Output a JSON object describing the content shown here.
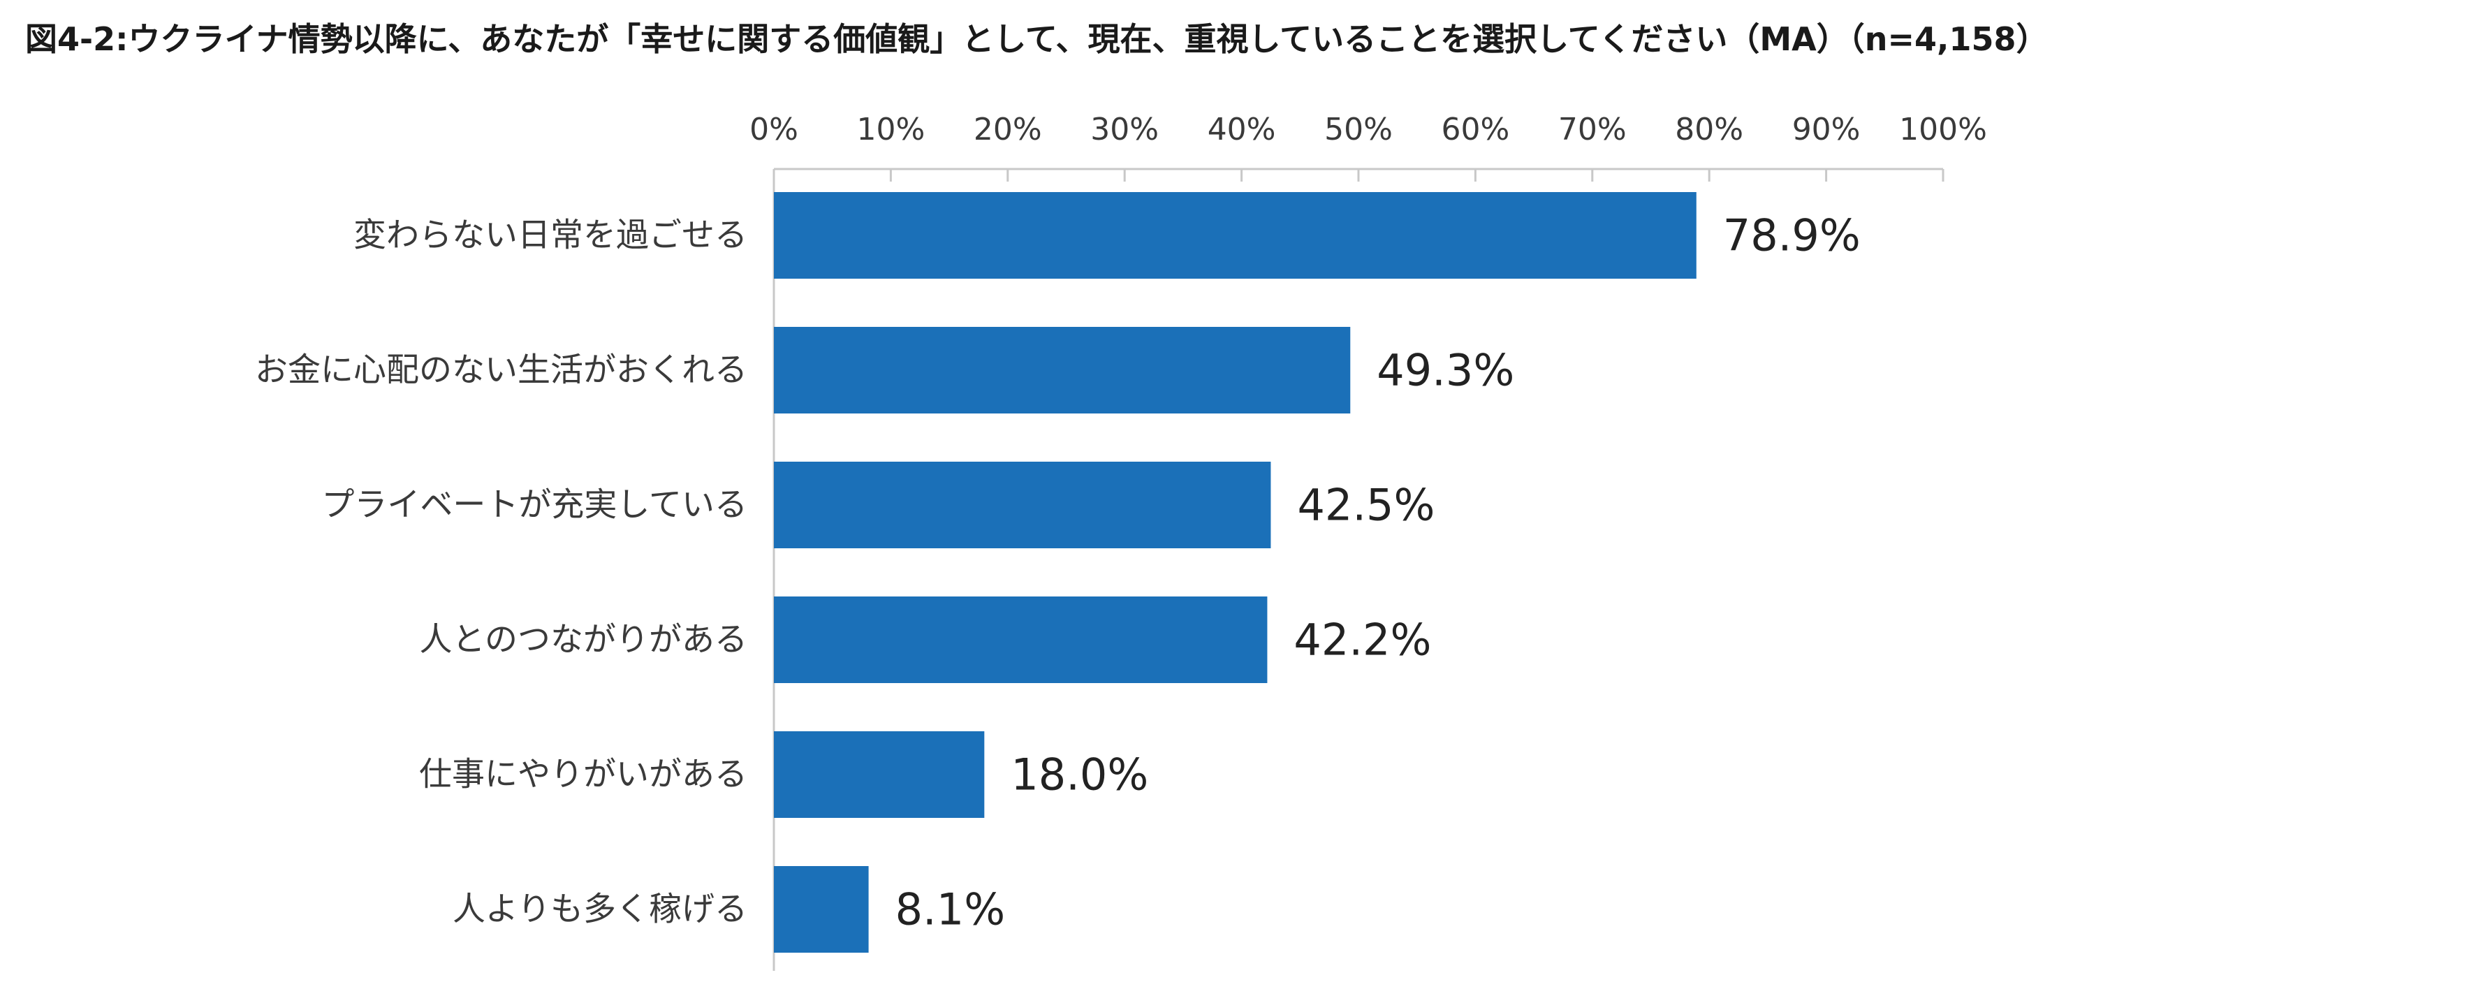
{
  "chart_data": {
    "type": "bar",
    "orientation": "horizontal",
    "title": "図4-2:ウクライナ情勢以降に、あなたが「幸せに関する価値観」として、現在、重視していることを選択してください（MA）（n=4,158）",
    "categories": [
      "変わらない日常を過ごせる",
      "お金に心配のない生活がおくれる",
      "プライベートが充実している",
      "人とのつながりがある",
      "仕事にやりがいがある",
      "人よりも多く稼げる"
    ],
    "values": [
      78.9,
      49.3,
      42.5,
      42.2,
      18.0,
      8.1
    ],
    "value_labels": [
      "78.9%",
      "49.3%",
      "42.5%",
      "42.2%",
      "18.0%",
      "8.1%"
    ],
    "xlim": [
      0,
      100
    ],
    "x_ticks": [
      0,
      10,
      20,
      30,
      40,
      50,
      60,
      70,
      80,
      90,
      100
    ],
    "x_tick_labels": [
      "0%",
      "10%",
      "20%",
      "30%",
      "40%",
      "50%",
      "60%",
      "70%",
      "80%",
      "90%",
      "100%"
    ],
    "x_axis_position": "top",
    "xlabel": "",
    "ylabel": "",
    "grid": false,
    "legend": "none",
    "bar_color": "#1b70b8"
  }
}
